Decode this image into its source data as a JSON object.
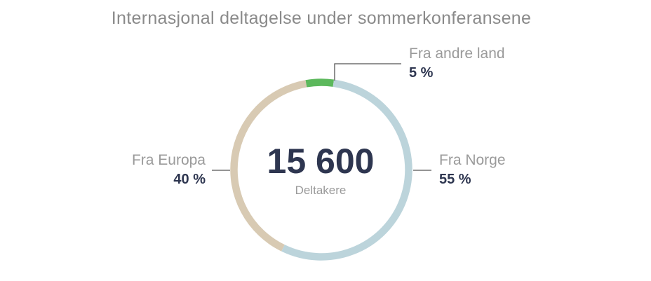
{
  "chart_data": {
    "type": "pie",
    "title": "Internasjonal deltagelse under sommerkonferansene",
    "center_value": "15 600",
    "center_caption": "Deltakere",
    "slices": [
      {
        "label": "Fra andre land",
        "value": 5,
        "display": "5 %",
        "color": "#5cb85c"
      },
      {
        "label": "Fra Norge",
        "value": 55,
        "display": "55 %",
        "color": "#bcd4db"
      },
      {
        "label": "Fra Europa",
        "value": 40,
        "display": "40 %",
        "color": "#d8cab3"
      }
    ]
  }
}
